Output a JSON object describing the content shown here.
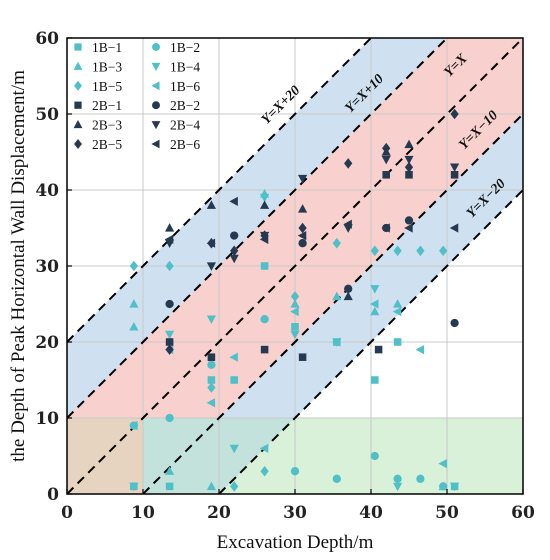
{
  "chart_data": {
    "type": "scatter",
    "xlabel": "Excavation Depth/m",
    "ylabel": "the Depth of Peak Horizontal Wall Displacement/m",
    "xlim": [
      0,
      60
    ],
    "ylim": [
      0,
      60
    ],
    "xticks": [
      "0",
      "10",
      "20",
      "30",
      "40",
      "50",
      "60"
    ],
    "yticks": [
      "0",
      "10",
      "20",
      "30",
      "40",
      "50",
      "60"
    ],
    "grid": true,
    "legend_position": "top-left",
    "reference_lines": [
      {
        "label": "Y=X+20",
        "offset": 20
      },
      {
        "label": "Y=X+10",
        "offset": 10
      },
      {
        "label": "Y=X",
        "offset": 0
      },
      {
        "label": "Y=X−10",
        "offset": -10
      },
      {
        "label": "Y=X−20",
        "offset": -20
      }
    ],
    "colors": {
      "teal": "#4fc0c8",
      "navy": "#253950",
      "band_blue": "#c7dcef",
      "band_pink": "#f7c8c4",
      "region_tan": "#e6d3c0",
      "region_green": "#d8f1d8",
      "region_teal": "#c3e2dc"
    },
    "series": [
      {
        "name": "1B−1",
        "marker": "square",
        "color": "#4fc0c8",
        "points": [
          [
            8.8,
            1
          ],
          [
            13.5,
            1
          ],
          [
            19,
            15
          ],
          [
            22,
            15
          ],
          [
            26,
            30
          ],
          [
            30,
            22
          ],
          [
            35.5,
            20
          ],
          [
            40.5,
            15
          ],
          [
            43.5,
            20
          ],
          [
            51,
            1
          ]
        ]
      },
      {
        "name": "1B−2",
        "marker": "circle",
        "color": "#4fc0c8",
        "points": [
          [
            8.8,
            9
          ],
          [
            13.5,
            10
          ],
          [
            19,
            17
          ],
          [
            26,
            23
          ],
          [
            30,
            3
          ],
          [
            35.5,
            2
          ],
          [
            40.5,
            5
          ],
          [
            43.5,
            2
          ],
          [
            46.5,
            2
          ],
          [
            49.5,
            1
          ]
        ]
      },
      {
        "name": "1B−3",
        "marker": "triangle-up",
        "color": "#4fc0c8",
        "points": [
          [
            8.8,
            25
          ],
          [
            8.8,
            22
          ],
          [
            13.5,
            3
          ],
          [
            19,
            1
          ],
          [
            26,
            39.5
          ],
          [
            30,
            25
          ],
          [
            35.5,
            26
          ],
          [
            40.5,
            24
          ],
          [
            43.5,
            25
          ],
          [
            49.5,
            1
          ]
        ]
      },
      {
        "name": "1B−4",
        "marker": "triangle-down",
        "color": "#4fc0c8",
        "points": [
          [
            8.8,
            1
          ],
          [
            13.5,
            21
          ],
          [
            19,
            23
          ],
          [
            22,
            6
          ],
          [
            26,
            39
          ],
          [
            30,
            21
          ],
          [
            35.5,
            20
          ],
          [
            40.5,
            27
          ],
          [
            43.5,
            1
          ],
          [
            51,
            1
          ]
        ]
      },
      {
        "name": "1B−5",
        "marker": "diamond",
        "color": "#4fc0c8",
        "points": [
          [
            8.8,
            30
          ],
          [
            13.5,
            30
          ],
          [
            19,
            14
          ],
          [
            22,
            1
          ],
          [
            26,
            3
          ],
          [
            30,
            26
          ],
          [
            35.5,
            33
          ],
          [
            40.5,
            32
          ],
          [
            43.5,
            32
          ],
          [
            46.5,
            32
          ],
          [
            49.5,
            32
          ]
        ]
      },
      {
        "name": "1B−6",
        "marker": "triangle-left",
        "color": "#4fc0c8",
        "points": [
          [
            8.8,
            9
          ],
          [
            13.5,
            19
          ],
          [
            19,
            12
          ],
          [
            22,
            18
          ],
          [
            26,
            6
          ],
          [
            30,
            24
          ],
          [
            35.5,
            20
          ],
          [
            40.5,
            25
          ],
          [
            43.5,
            24
          ],
          [
            46.5,
            19
          ],
          [
            49.5,
            4
          ]
        ]
      },
      {
        "name": "2B−1",
        "marker": "square",
        "color": "#253950",
        "points": [
          [
            13.5,
            20
          ],
          [
            19,
            18
          ],
          [
            26,
            19
          ],
          [
            31,
            18
          ],
          [
            41,
            19
          ],
          [
            42,
            42
          ],
          [
            45,
            42
          ],
          [
            51,
            42
          ]
        ]
      },
      {
        "name": "2B−2",
        "marker": "circle",
        "color": "#253950",
        "points": [
          [
            13.5,
            25
          ],
          [
            22,
            34
          ],
          [
            31,
            33
          ],
          [
            37,
            27
          ],
          [
            42,
            35
          ],
          [
            45,
            36
          ],
          [
            51,
            22.5
          ]
        ]
      },
      {
        "name": "2B−3",
        "marker": "triangle-up",
        "color": "#253950",
        "points": [
          [
            13.5,
            35
          ],
          [
            19,
            38
          ],
          [
            26,
            38
          ],
          [
            31,
            37.5
          ],
          [
            37,
            26
          ],
          [
            42,
            45
          ],
          [
            45,
            46
          ]
        ]
      },
      {
        "name": "2B−4",
        "marker": "triangle-down",
        "color": "#253950",
        "points": [
          [
            13.5,
            33
          ],
          [
            19,
            30
          ],
          [
            22,
            31
          ],
          [
            26,
            34
          ],
          [
            31,
            41.5
          ],
          [
            37,
            35
          ],
          [
            42,
            44
          ],
          [
            45,
            44
          ],
          [
            51,
            43
          ]
        ]
      },
      {
        "name": "2B−5",
        "marker": "diamond",
        "color": "#253950",
        "points": [
          [
            13.5,
            19
          ],
          [
            19,
            33
          ],
          [
            22,
            32
          ],
          [
            26,
            34
          ],
          [
            31,
            35
          ],
          [
            37,
            43.5
          ],
          [
            42,
            45.5
          ],
          [
            45,
            43
          ],
          [
            51,
            50
          ]
        ]
      },
      {
        "name": "2B−6",
        "marker": "triangle-left",
        "color": "#253950",
        "points": [
          [
            13.5,
            33.5
          ],
          [
            19,
            33
          ],
          [
            22,
            38.5
          ],
          [
            26,
            33.5
          ],
          [
            31,
            34
          ],
          [
            37,
            35.5
          ],
          [
            42,
            35
          ],
          [
            45,
            35
          ],
          [
            51,
            35
          ]
        ]
      }
    ]
  }
}
